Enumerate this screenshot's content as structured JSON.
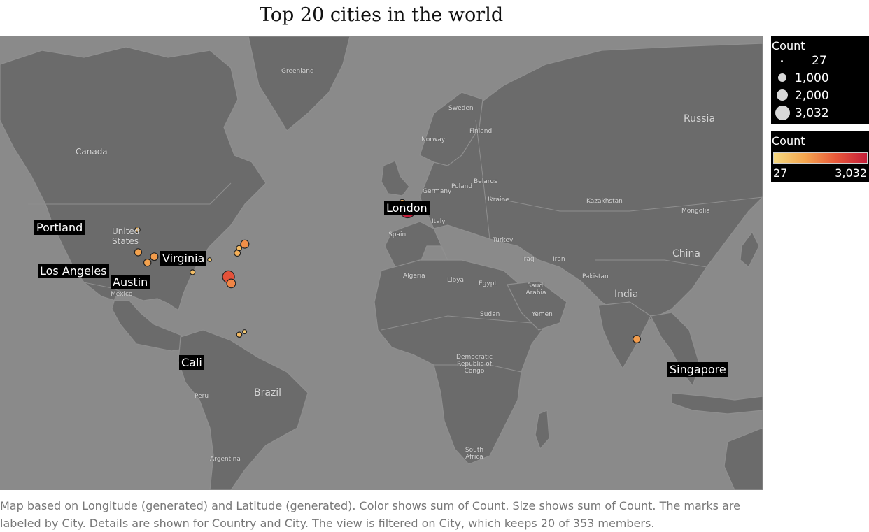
{
  "title": "Top 20 cities in the world",
  "caption": "Map based on Longitude (generated) and Latitude (generated).  Color shows sum of Count.  Size shows sum of Count.  The marks are labeled by City.  Details are shown for Country and City. The view is filtered on City, which keeps 20 of 353 members.",
  "size_legend": {
    "title": "Count",
    "entries": [
      {
        "label": "27",
        "value": 27
      },
      {
        "label": "1,000",
        "value": 1000
      },
      {
        "label": "2,000",
        "value": 2000
      },
      {
        "label": "3,032",
        "value": 3032
      }
    ]
  },
  "color_legend": {
    "title": "Count",
    "min_label": "27",
    "max_label": "3,032",
    "colors": [
      "#f4d880",
      "#f4a64f",
      "#e8583a",
      "#c41e3a"
    ]
  },
  "colors": {
    "ocean": "#8a8a8a",
    "land": "#6b6b6b",
    "border": "#8f8f8f",
    "mark_low": "#f4d880",
    "mark_high": "#c41e3a"
  },
  "country_labels": [
    "Greenland",
    "Canada",
    "United States",
    "Mexico",
    "Brazil",
    "Peru",
    "Argentina",
    "Sweden",
    "Finland",
    "Norway",
    "Poland",
    "Belarus",
    "Germany",
    "Ukraine",
    "Italy",
    "Spain",
    "Turkey",
    "Algeria",
    "Libya",
    "Egypt",
    "Iraq",
    "Iran",
    "Saudi Arabia",
    "Sudan",
    "Yemen",
    "Democratic Republic of Congo",
    "South Africa",
    "Russia",
    "Kazakhstan",
    "Mongolia",
    "China",
    "Pakistan",
    "India"
  ],
  "city_labels": [
    "London",
    "Portland",
    "Los Angeles",
    "Austin",
    "Virginia",
    "Cali",
    "Singapore"
  ],
  "marks": [
    {
      "city": "London",
      "lon": -0.13,
      "lat": 51.5,
      "count": 3032
    },
    {
      "city": "",
      "lon": -2.6,
      "lat": 53.5,
      "count": 250
    },
    {
      "city": "",
      "lon": 6.8,
      "lat": 51.2,
      "count": 100
    },
    {
      "city": "Portland",
      "lon": -122.7,
      "lat": 45.5,
      "count": 150
    },
    {
      "city": "",
      "lon": -122.4,
      "lat": 37.8,
      "count": 400
    },
    {
      "city": "Los Angeles",
      "lon": -118.2,
      "lat": 34.0,
      "count": 400
    },
    {
      "city": "",
      "lon": -115.1,
      "lat": 36.2,
      "count": 450
    },
    {
      "city": "Austin",
      "lon": -97.7,
      "lat": 30.3,
      "count": 120
    },
    {
      "city": "",
      "lon": -90.0,
      "lat": 35.1,
      "count": 50
    },
    {
      "city": "Virginia",
      "lon": -77.4,
      "lat": 37.5,
      "count": 250
    },
    {
      "city": "",
      "lon": -76.6,
      "lat": 39.3,
      "count": 150
    },
    {
      "city": "",
      "lon": -74.0,
      "lat": 40.7,
      "count": 600
    },
    {
      "city": "",
      "lon": -81.4,
      "lat": 28.5,
      "count": 1500
    },
    {
      "city": "",
      "lon": -80.2,
      "lat": 25.8,
      "count": 700
    },
    {
      "city": "Cali",
      "lon": -76.5,
      "lat": 3.4,
      "count": 150
    },
    {
      "city": "",
      "lon": -74.1,
      "lat": 4.7,
      "count": 60
    },
    {
      "city": "Singapore",
      "lon": 103.8,
      "lat": 1.35,
      "count": 450
    }
  ]
}
